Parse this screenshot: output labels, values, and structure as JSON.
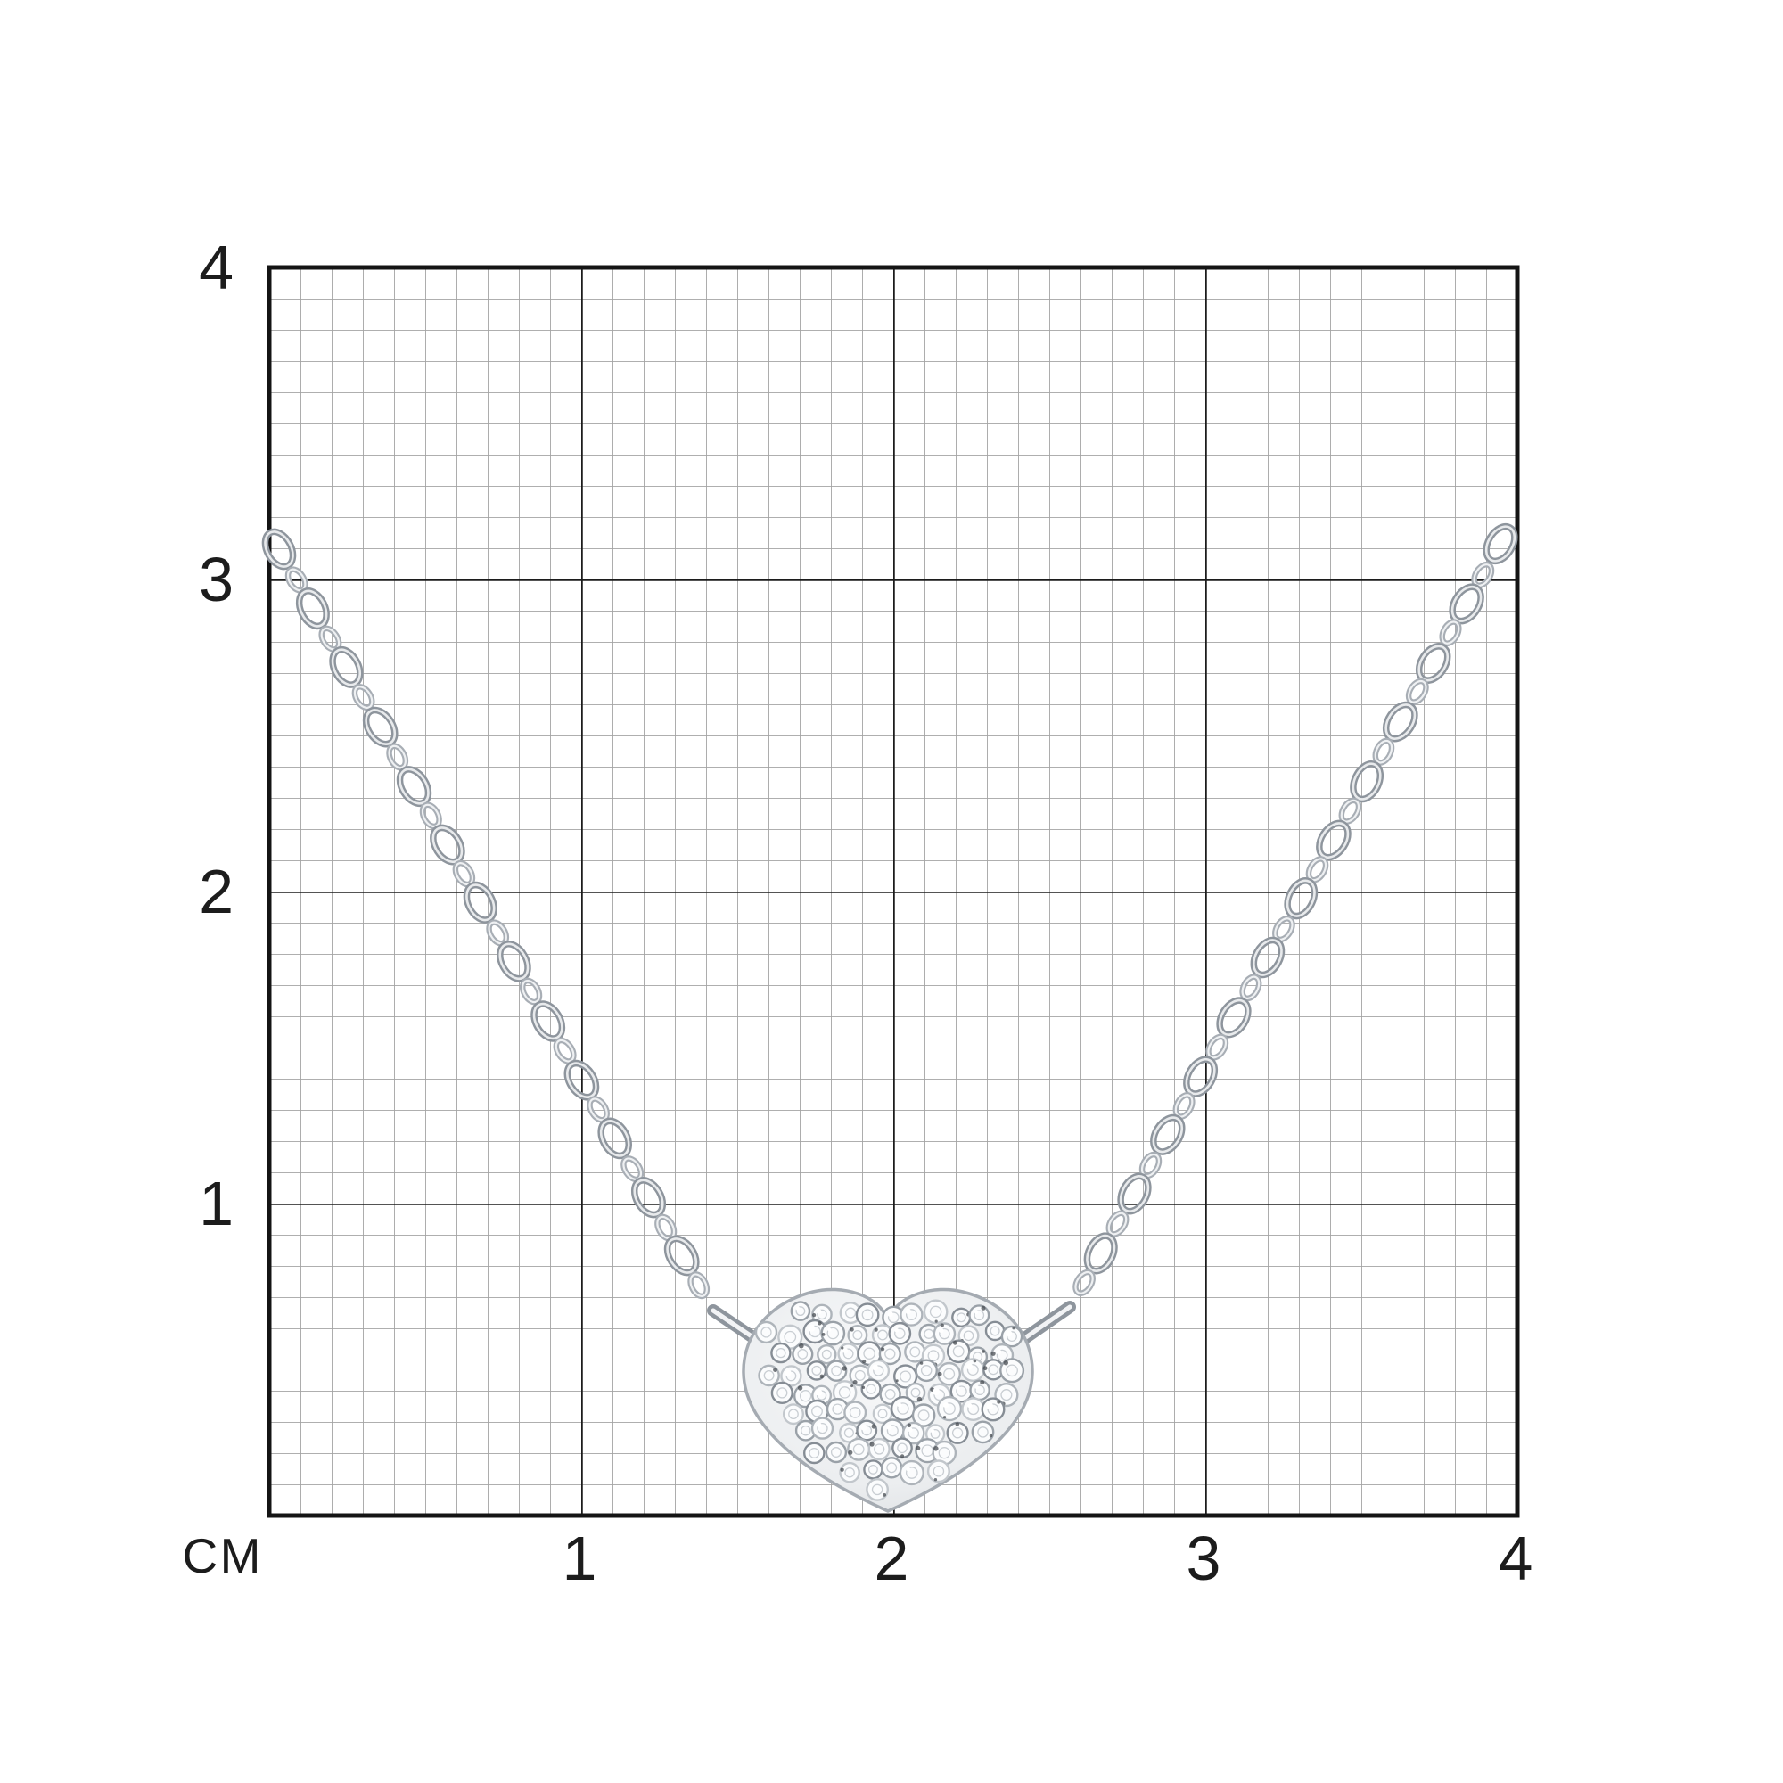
{
  "figure": {
    "type": "product-size-diagram",
    "subject": "silver cable-chain necklace with pave heart pendant",
    "unit_label": "СМ",
    "x_ticks": [
      "1",
      "2",
      "3",
      "4"
    ],
    "y_ticks": [
      "4",
      "3",
      "2",
      "1"
    ],
    "grid": {
      "extent_cm": 4,
      "minor_divisions_per_cm": 10
    },
    "depicted_measurements": {
      "pendant_width_cm": "≈0.9",
      "pendant_height_cm": "≈0.7",
      "chain_top_height_cm": "≈3.1"
    }
  },
  "colors": {
    "background": "#ffffff",
    "grid_minor": "#a4a4a4",
    "grid_major": "#1c1c1c",
    "grid_border": "#141414",
    "label_text": "#1c1c1c",
    "metal_dark": "#8e959d",
    "metal_mid": "#a8aeb5",
    "metal_light": "#e8eaec",
    "heart_base": "#eff1f3",
    "stone_fill": "#fbfcfd",
    "speck_dark": "#474c52"
  }
}
